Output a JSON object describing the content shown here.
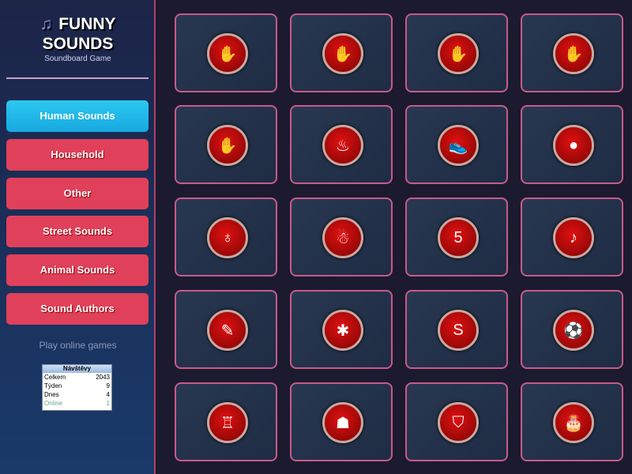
{
  "logo": {
    "line1": "FUNNY",
    "line2": "SOUNDS",
    "subtitle": "Soundboard Game",
    "icon": "music-note-icon"
  },
  "categories": [
    {
      "label": "Human Sounds",
      "active": true
    },
    {
      "label": "Household",
      "active": false
    },
    {
      "label": "Other",
      "active": false
    },
    {
      "label": "Street Sounds",
      "active": false
    },
    {
      "label": "Animal Sounds",
      "active": false
    },
    {
      "label": "Sound Authors",
      "active": false
    }
  ],
  "play_online": "Play online games",
  "counter": {
    "title": "Návštěvy",
    "rows": [
      {
        "label": "Celkem",
        "value": "2043"
      },
      {
        "label": "Týden",
        "value": "9"
      },
      {
        "label": "Dnes",
        "value": "4"
      },
      {
        "label": "Online",
        "value": "1"
      }
    ]
  },
  "sounds": [
    {
      "icon": "hand-icon",
      "glyph": "✋"
    },
    {
      "icon": "hand-icon",
      "glyph": "✋"
    },
    {
      "icon": "hand-icon",
      "glyph": "✋"
    },
    {
      "icon": "hand-icon",
      "glyph": "✋"
    },
    {
      "icon": "hand-icon",
      "glyph": "✋"
    },
    {
      "icon": "figure-icon",
      "glyph": "♨"
    },
    {
      "icon": "shoe-icon",
      "glyph": "👟"
    },
    {
      "icon": "green-blob-icon",
      "glyph": "●"
    },
    {
      "icon": "stomach-icon",
      "glyph": "♁"
    },
    {
      "icon": "gingerbread-icon",
      "glyph": "☃"
    },
    {
      "icon": "number-5-icon",
      "glyph": "5"
    },
    {
      "icon": "music-icon",
      "glyph": "♪"
    },
    {
      "icon": "brush-icon",
      "glyph": "✎"
    },
    {
      "icon": "bug-icon",
      "glyph": "✱"
    },
    {
      "icon": "snake-icon",
      "glyph": "S"
    },
    {
      "icon": "soccer-ball-icon",
      "glyph": "⚽"
    },
    {
      "icon": "toilet-icon",
      "glyph": "♖"
    },
    {
      "icon": "person-icon",
      "glyph": "☗"
    },
    {
      "icon": "tooth-icon",
      "glyph": "⛉"
    },
    {
      "icon": "cake-icon",
      "glyph": "🎂"
    }
  ]
}
